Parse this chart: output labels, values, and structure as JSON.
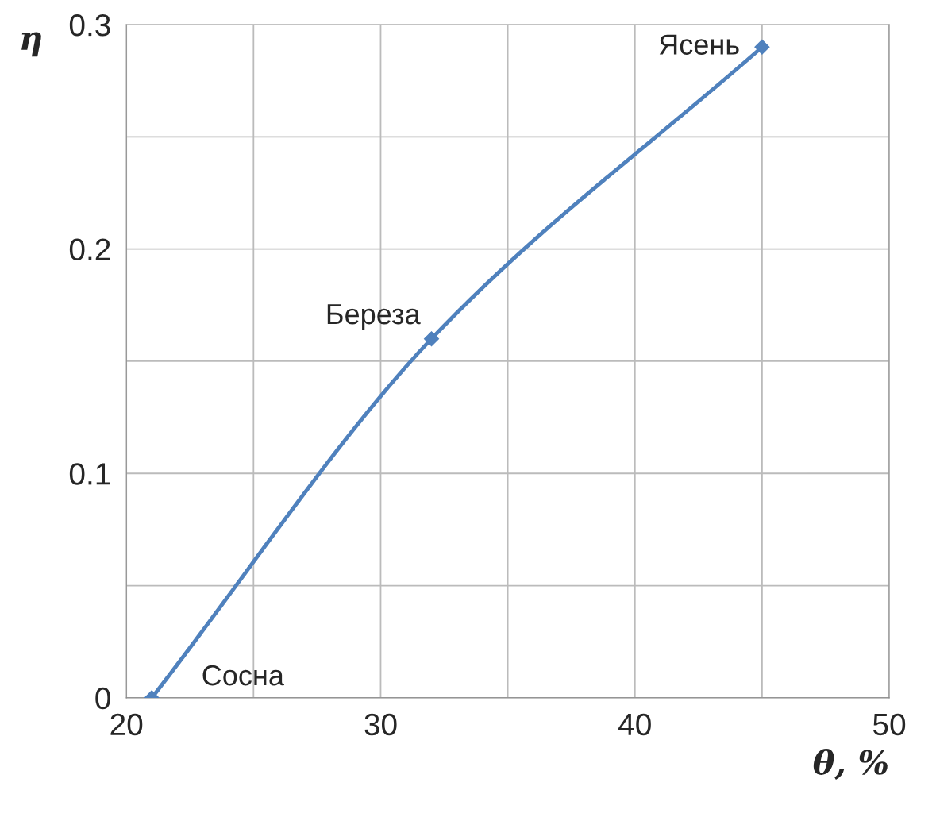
{
  "chart_data": {
    "type": "line",
    "xlabel": "θ, %",
    "ylabel": "η",
    "x": [
      21,
      32,
      45
    ],
    "series": [
      {
        "color": "#4f81bd",
        "values": [
          0,
          0.16,
          0.29
        ]
      }
    ],
    "xlim": [
      20,
      50
    ],
    "ylim": [
      0,
      0.3
    ],
    "xticks": [
      20,
      {
        "value": 25,
        "label": null
      },
      30,
      {
        "value": 35,
        "label": null
      },
      40,
      {
        "value": 45,
        "label": null
      },
      50
    ],
    "yticks": [
      0,
      {
        "value": 0.05,
        "label": null
      },
      0.1,
      {
        "value": 0.15,
        "label": null
      },
      0.2,
      {
        "value": 0.25,
        "label": null
      },
      0.3
    ],
    "grid": true,
    "marker": "diamond",
    "line_style": "solid",
    "annotations": [
      {
        "text": "Сосна",
        "x": 21,
        "y": 0
      },
      {
        "text": "Береза",
        "x": 32,
        "y": 0.16
      },
      {
        "text": "Ясень",
        "x": 45,
        "y": 0.29
      }
    ]
  }
}
